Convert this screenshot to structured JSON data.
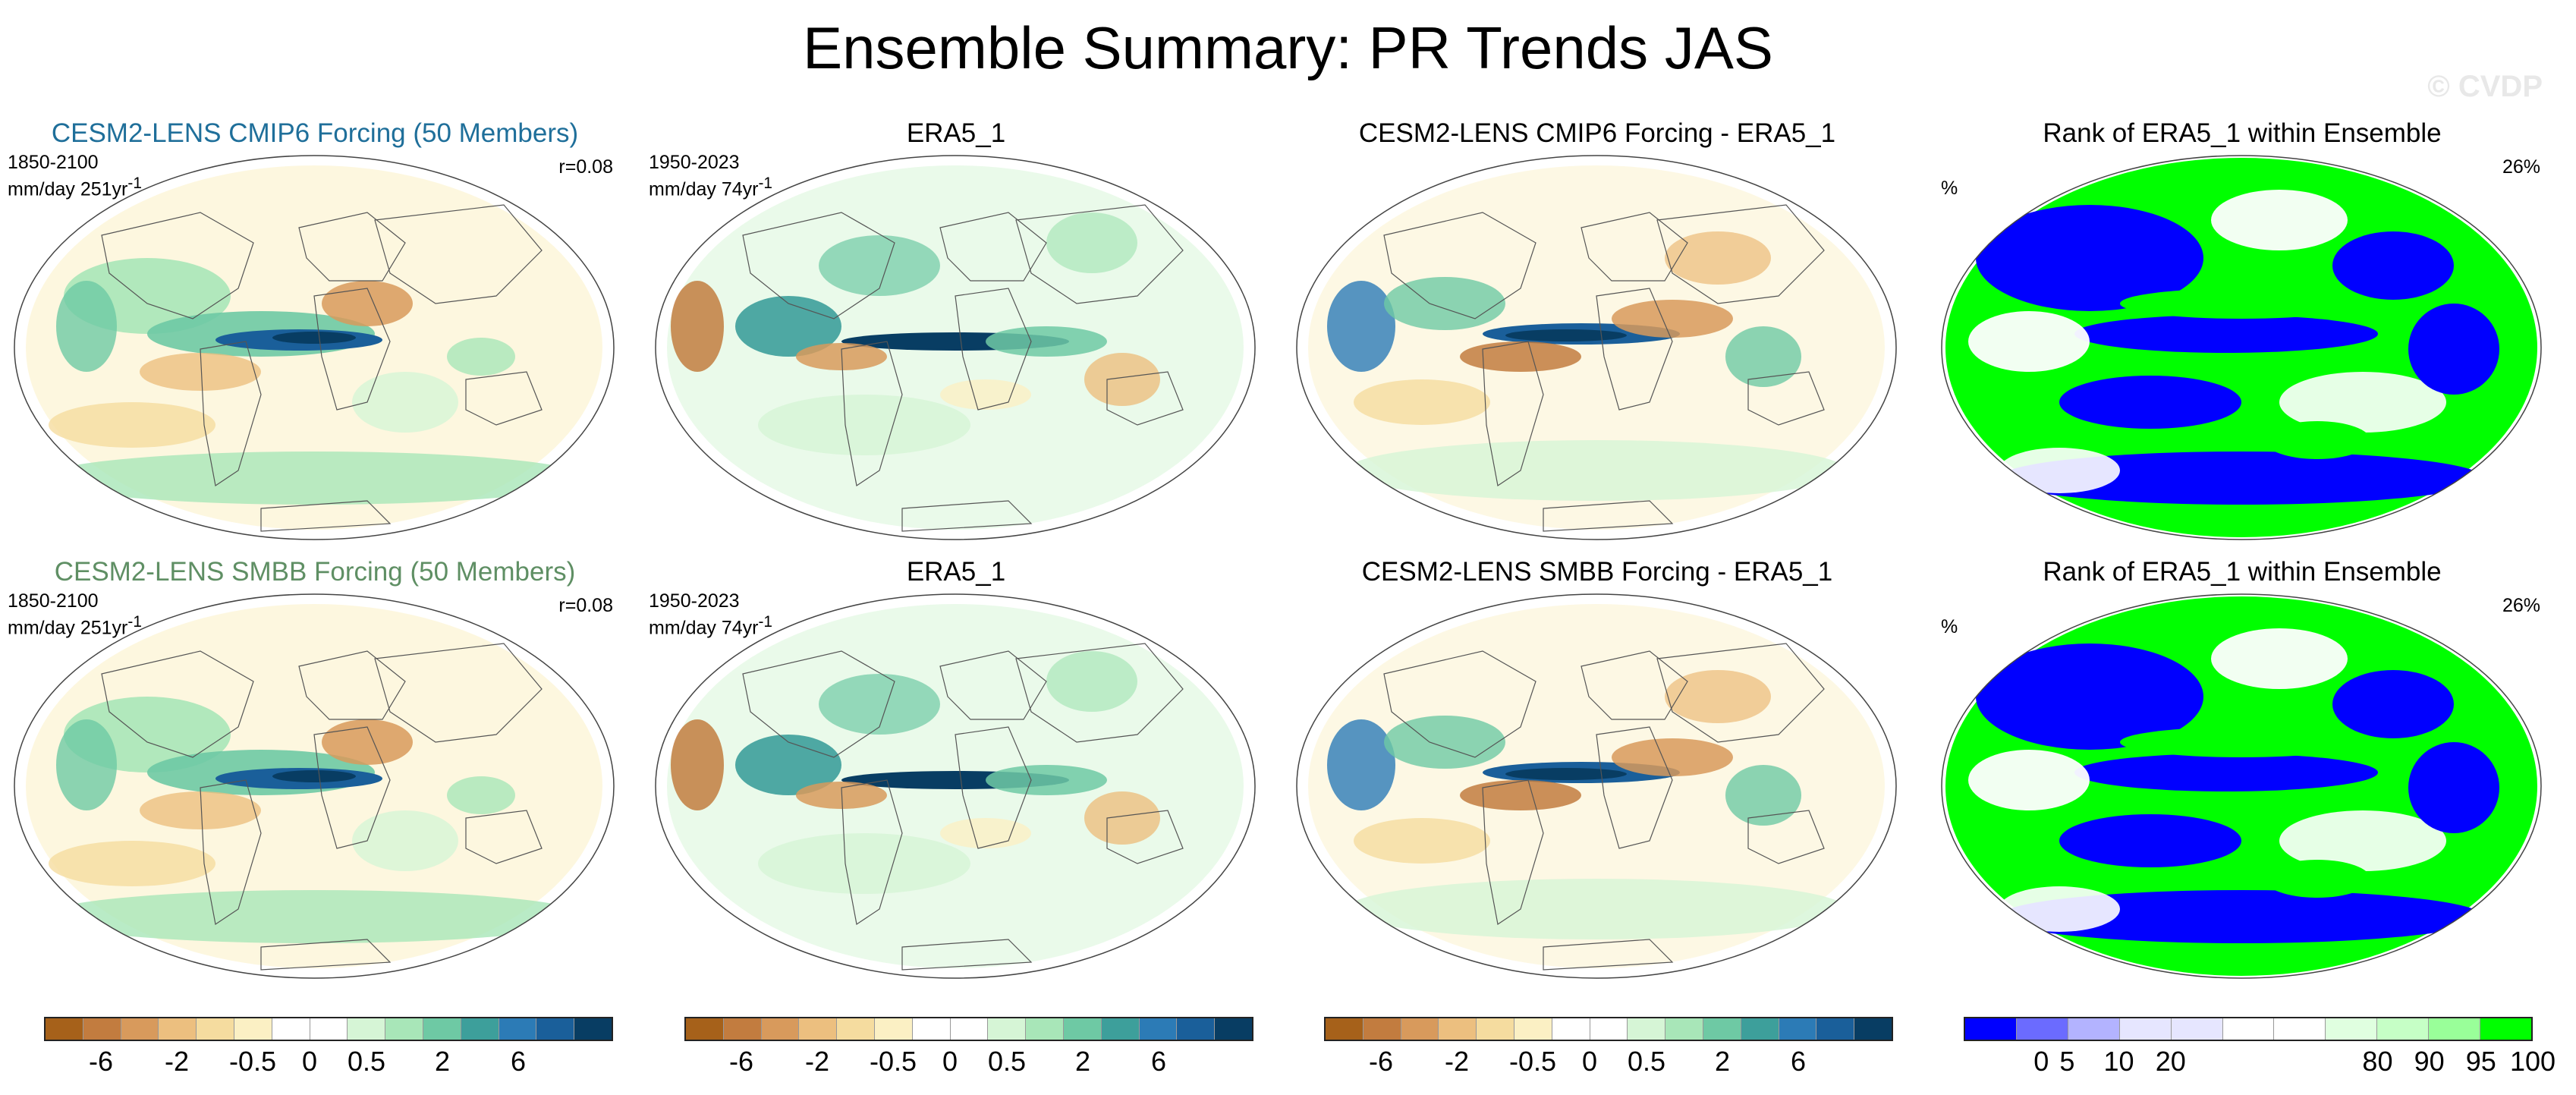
{
  "title": "Ensemble Summary: PR Trends JAS",
  "watermark": "© CVDP",
  "rows": [
    {
      "model": {
        "title": "CESM2-LENS CMIP6 Forcing (50 Members)",
        "period": "1850-2100",
        "units": "mm/day 251yr",
        "units_sup": "-1",
        "corr": "r=0.08"
      },
      "obs": {
        "title": "ERA5_1",
        "period": "1950-2023",
        "units": "mm/day 74yr",
        "units_sup": "-1"
      },
      "diff": {
        "title": "CESM2-LENS CMIP6 Forcing - ERA5_1"
      },
      "rank": {
        "title": "Rank of ERA5_1 within Ensemble",
        "unit": "%",
        "value": "26%"
      }
    },
    {
      "model": {
        "title": "CESM2-LENS SMBB Forcing (50 Members)",
        "period": "1850-2100",
        "units": "mm/day 251yr",
        "units_sup": "-1",
        "corr": "r=0.08"
      },
      "obs": {
        "title": "ERA5_1",
        "period": "1950-2023",
        "units": "mm/day 74yr",
        "units_sup": "-1"
      },
      "diff": {
        "title": "CESM2-LENS SMBB Forcing - ERA5_1"
      },
      "rank": {
        "title": "Rank of ERA5_1 within Ensemble",
        "unit": "%",
        "value": "26%"
      }
    }
  ],
  "colorbars": {
    "trend": {
      "colors": [
        "#a6611a",
        "#c27c3f",
        "#d89a5c",
        "#ecbf7f",
        "#f5dc9f",
        "#fbf0c4",
        "#ffffff",
        "#ffffff",
        "#d6f5d6",
        "#a8e6b8",
        "#6ec9a4",
        "#3d9f9b",
        "#2c7bb6",
        "#1a5f9a",
        "#083d63"
      ],
      "labels": [
        "-6",
        "-2",
        "-0.5",
        "0",
        "0.5",
        "2",
        "6"
      ]
    },
    "rank": {
      "colors": [
        "#0000ff",
        "#6b6bff",
        "#b3b3ff",
        "#e6e6ff",
        "#e6e6ff",
        "#ffffff",
        "#ffffff",
        "#e0ffe0",
        "#c6ffc6",
        "#99ff99",
        "#00ff00"
      ],
      "labels": [
        "0",
        "5",
        "10",
        "20",
        "80",
        "90",
        "95",
        "100"
      ]
    }
  }
}
